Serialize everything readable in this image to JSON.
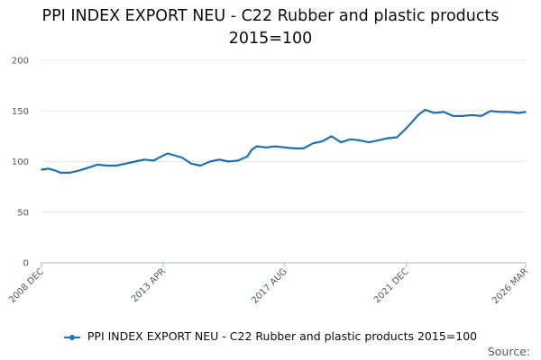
{
  "title_line1": "PPI INDEX EXPORT NEU - C22 Rubber and plastic products",
  "title_line2": "2015=100",
  "legend_label": "PPI INDEX EXPORT NEU - C22 Rubber and plastic products 2015=100",
  "source_label": "Source:",
  "colors": {
    "series": "#1d70b8",
    "grid": "#e6e6e6",
    "axis": "#505a5f"
  },
  "chart_data": {
    "type": "line",
    "title": "PPI INDEX EXPORT NEU - C22 Rubber and plastic products 2015=100",
    "xlabel": "",
    "ylabel": "",
    "ylim": [
      0,
      200
    ],
    "yticks": [
      0,
      50,
      100,
      150,
      200
    ],
    "xticks": [
      "2008 DEC",
      "2013 APR",
      "2017 AUG",
      "2021 DEC",
      "2026 MAR"
    ],
    "grid": true,
    "legend_position": "bottom",
    "series": [
      {
        "name": "PPI INDEX EXPORT NEU - C22 Rubber and plastic products 2015=100",
        "points": [
          [
            "2008 DEC",
            92
          ],
          [
            "2009 MAR",
            93
          ],
          [
            "2009 JUN",
            91
          ],
          [
            "2009 AUG",
            89
          ],
          [
            "2009 DEC",
            89
          ],
          [
            "2010 APR",
            91
          ],
          [
            "2010 AUG",
            94
          ],
          [
            "2010 DEC",
            97
          ],
          [
            "2011 APR",
            96
          ],
          [
            "2011 AUG",
            96
          ],
          [
            "2011 DEC",
            98
          ],
          [
            "2012 APR",
            100
          ],
          [
            "2012 AUG",
            102
          ],
          [
            "2012 DEC",
            101
          ],
          [
            "2013 APR",
            106
          ],
          [
            "2013 JUN",
            108
          ],
          [
            "2013 DEC",
            104
          ],
          [
            "2014 APR",
            98
          ],
          [
            "2014 AUG",
            96
          ],
          [
            "2014 DEC",
            100
          ],
          [
            "2015 APR",
            102
          ],
          [
            "2015 AUG",
            100
          ],
          [
            "2015 DEC",
            101
          ],
          [
            "2016 APR",
            105
          ],
          [
            "2016 JUN",
            112
          ],
          [
            "2016 AUG",
            115
          ],
          [
            "2016 DEC",
            114
          ],
          [
            "2017 APR",
            115
          ],
          [
            "2017 AUG",
            114
          ],
          [
            "2017 DEC",
            113
          ],
          [
            "2018 APR",
            113
          ],
          [
            "2018 AUG",
            118
          ],
          [
            "2018 DEC",
            120
          ],
          [
            "2019 APR",
            125
          ],
          [
            "2019 AUG",
            119
          ],
          [
            "2019 DEC",
            122
          ],
          [
            "2020 APR",
            121
          ],
          [
            "2020 AUG",
            119
          ],
          [
            "2020 DEC",
            121
          ],
          [
            "2021 APR",
            123
          ],
          [
            "2021 AUG",
            124
          ],
          [
            "2021 DEC",
            133
          ],
          [
            "2022 FEB",
            138
          ],
          [
            "2022 MAY",
            146
          ],
          [
            "2022 AUG",
            151
          ],
          [
            "2022 DEC",
            148
          ],
          [
            "2023 APR",
            149
          ],
          [
            "2023 AUG",
            145
          ],
          [
            "2023 DEC",
            145
          ],
          [
            "2024 APR",
            146
          ],
          [
            "2024 AUG",
            145
          ],
          [
            "2024 DEC",
            150
          ],
          [
            "2025 APR",
            149
          ],
          [
            "2025 AUG",
            149
          ],
          [
            "2025 DEC",
            148
          ],
          [
            "2026 MAR",
            149
          ]
        ]
      }
    ]
  }
}
